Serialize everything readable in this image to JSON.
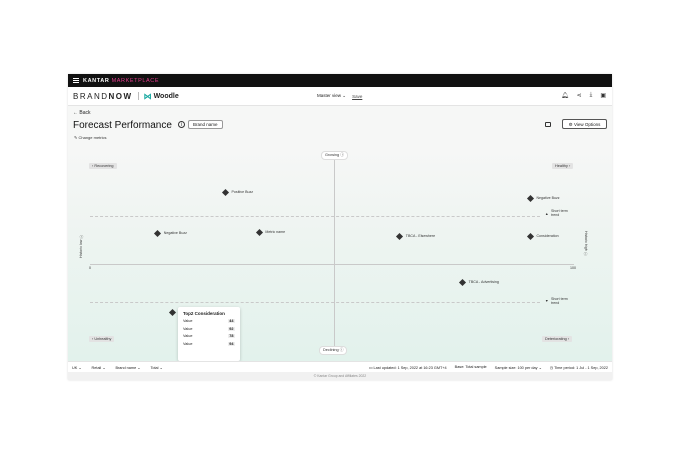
{
  "app": {
    "top_brand": "KANTAR",
    "top_brand_accent": "MARKETPLACE",
    "logo_part1": "BRAND",
    "logo_part2": "NOW",
    "client_name": "Woodle"
  },
  "header": {
    "view_label": "Master view",
    "view_caret": "⌄",
    "save_label": "Save"
  },
  "page": {
    "back_label": "Back",
    "title": "Forecast Performance",
    "brand_chip": "Brand name",
    "change_metrics": "Change metrics",
    "view_options": "View Options"
  },
  "chart_data": {
    "type": "scatter",
    "quadrants": {
      "top": "Growing",
      "bottom": "Declining",
      "top_left": "Recovering",
      "top_right": "Healthy",
      "bottom_left": "Unhealthy",
      "bottom_right": "Deteriorating"
    },
    "y_axis_left_label": "Historic low",
    "y_axis_right_label": "Historic high",
    "x_tick_min": "0",
    "x_tick_max": "100",
    "trend_label_top": "Short term trend",
    "trend_label_bottom": "Short term trend",
    "points": [
      {
        "label": "Positive Buzz",
        "x": 28,
        "y": 72
      },
      {
        "label": "Negative Buzz",
        "x": 14,
        "y": 31
      },
      {
        "label": "Metric name",
        "x": 35,
        "y": 32
      },
      {
        "label": "TBCA - Elsewhere",
        "x": 64,
        "y": 28
      },
      {
        "label": "Negative Buzz",
        "x": 91,
        "y": 66
      },
      {
        "label": "Consideration",
        "x": 91,
        "y": 28
      },
      {
        "label": "TBCA - Advertising",
        "x": 77,
        "y": -18
      },
      {
        "label": "Top2 Consideration",
        "x": 17,
        "y": -48
      }
    ]
  },
  "tooltip": {
    "title": "Top2 Consideration",
    "rows": [
      {
        "label": "Value",
        "value": "44"
      },
      {
        "label": "Value",
        "value": "92"
      },
      {
        "label": "Value",
        "value": "78"
      },
      {
        "label": "Value",
        "value": "94"
      }
    ]
  },
  "footer": {
    "market": "UK",
    "channel": "Retail",
    "brand": "Brand name",
    "total": "Total",
    "last_updated": "Last updated: 1 Sep, 2022 at 16:23 GMT+4",
    "base": "Base: Total sample",
    "sample_size": "Sample size: 100 per day",
    "time_period": "Time period: 1 Jul - 1 Sep, 2022",
    "copyright": "© Kantar Group and Affiliates 2022"
  },
  "icons": {
    "menu": "hamburger-icon",
    "bell": "bell-icon",
    "share": "share-icon",
    "download": "download-icon",
    "settings": "settings-icon"
  }
}
